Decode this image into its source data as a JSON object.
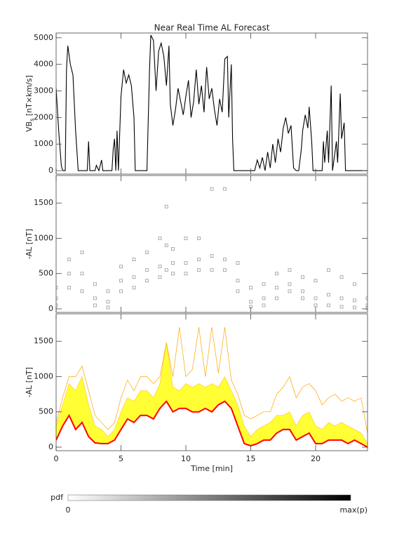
{
  "chart_data": [
    {
      "type": "line",
      "title": "Near Real Time AL Forecast",
      "ylabel": {
        "main": "VB",
        "sub": "s",
        "unit": " [nT×km/s]"
      },
      "color": "#000000",
      "xlim": [
        0,
        24
      ],
      "ylim": [
        -130,
        5180
      ],
      "yticks": [
        0,
        1000,
        2000,
        3000,
        4000,
        5000
      ],
      "x": [
        0,
        0.2,
        0.4,
        0.5,
        0.7,
        0.8,
        0.9,
        1.1,
        1.3,
        1.5,
        1.7,
        2.0,
        2.4,
        2.5,
        2.6,
        3.0,
        3.1,
        3.3,
        3.5,
        3.6,
        4.3,
        4.4,
        4.5,
        4.6,
        4.7,
        4.8,
        5.0,
        5.2,
        5.4,
        5.6,
        5.8,
        6.0,
        6.1,
        7.0,
        7.2,
        7.3,
        7.5,
        7.7,
        7.9,
        8.1,
        8.3,
        8.5,
        8.7,
        8.8,
        9.0,
        9.2,
        9.4,
        9.6,
        9.8,
        10.0,
        10.2,
        10.4,
        10.6,
        10.8,
        11.0,
        11.2,
        11.4,
        11.6,
        11.8,
        12.0,
        12.2,
        12.4,
        12.6,
        12.8,
        13.0,
        13.2,
        13.3,
        13.5,
        13.6,
        13.7,
        15.0,
        15.3,
        15.5,
        15.7,
        15.9,
        16.1,
        16.3,
        16.5,
        16.7,
        16.9,
        17.1,
        17.3,
        17.5,
        17.7,
        17.9,
        18.1,
        18.3,
        18.5,
        18.7,
        18.9,
        19.0,
        19.2,
        19.4,
        19.5,
        19.7,
        19.8,
        20.0,
        20.5,
        20.6,
        20.7,
        20.9,
        21.0,
        21.2,
        21.3,
        21.6,
        21.7,
        21.9,
        22.0,
        22.2,
        22.3,
        24.0
      ],
      "values": [
        3100,
        1500,
        200,
        0,
        0,
        3800,
        4700,
        4000,
        3600,
        1500,
        0,
        0,
        0,
        1100,
        0,
        0,
        200,
        0,
        400,
        0,
        0,
        800,
        1200,
        0,
        1500,
        0,
        2800,
        3800,
        3300,
        3600,
        3200,
        2000,
        0,
        0,
        3800,
        5100,
        4900,
        3000,
        4500,
        4800,
        4300,
        3200,
        4700,
        2500,
        1700,
        2300,
        3100,
        2600,
        2100,
        2800,
        3400,
        2000,
        2600,
        3800,
        2500,
        3200,
        2200,
        3900,
        2700,
        3100,
        2300,
        1700,
        2700,
        2200,
        4200,
        4300,
        2000,
        4000,
        1200,
        0,
        0,
        0,
        400,
        100,
        500,
        0,
        700,
        100,
        1000,
        300,
        1200,
        700,
        1600,
        2000,
        1400,
        1700,
        100,
        0,
        0,
        800,
        1500,
        2100,
        1600,
        2400,
        1100,
        0,
        0,
        0,
        1100,
        300,
        1500,
        300,
        3200,
        0,
        1100,
        300,
        2900,
        1200,
        1800,
        0,
        0
      ]
    },
    {
      "type": "scatter",
      "ylabel": "-AL [nT]",
      "color": "#555555",
      "xlim": [
        0,
        24
      ],
      "ylim": [
        -50,
        1890
      ],
      "yticks": [
        0,
        500,
        1000,
        1500
      ],
      "x": [
        0,
        0,
        0,
        1,
        1,
        1,
        2,
        2,
        2,
        3,
        3,
        3,
        4,
        4,
        4,
        5,
        5,
        5,
        6,
        6,
        6,
        7,
        7,
        7,
        8,
        8,
        8,
        8.5,
        8.5,
        8.5,
        9,
        9,
        9,
        10,
        10,
        10,
        11,
        11,
        11,
        12,
        12,
        12,
        13,
        13,
        13,
        14,
        14,
        14,
        15,
        15,
        15,
        16,
        16,
        16,
        17,
        17,
        17,
        18,
        18,
        18,
        19,
        19,
        19,
        20,
        20,
        20,
        21,
        21,
        21,
        22,
        22,
        22,
        23,
        23,
        23,
        24,
        24,
        24
      ],
      "values": [
        50,
        150,
        300,
        300,
        500,
        700,
        250,
        500,
        800,
        50,
        150,
        350,
        20,
        100,
        250,
        250,
        400,
        600,
        300,
        450,
        700,
        400,
        550,
        800,
        450,
        600,
        1000,
        550,
        900,
        1450,
        500,
        650,
        850,
        500,
        650,
        1000,
        550,
        700,
        1000,
        550,
        750,
        1700,
        550,
        700,
        1700,
        250,
        400,
        650,
        30,
        100,
        300,
        50,
        150,
        350,
        150,
        300,
        500,
        250,
        350,
        550,
        150,
        250,
        450,
        50,
        150,
        400,
        50,
        200,
        550,
        30,
        150,
        450,
        20,
        120,
        350,
        10,
        50,
        150
      ]
    },
    {
      "type": "area",
      "ylabel": "-AL [nT]",
      "xlabel": "Time [min]",
      "xlim": [
        0,
        24
      ],
      "ylim": [
        -50,
        1890
      ],
      "yticks": [
        0,
        500,
        1000,
        1500
      ],
      "xticks": [
        0,
        5,
        10,
        15,
        20
      ],
      "x": [
        0,
        0.5,
        1,
        1.5,
        2,
        2.5,
        3,
        3.5,
        4,
        4.5,
        5,
        5.5,
        6,
        6.5,
        7,
        7.5,
        8,
        8.5,
        9,
        9.5,
        10,
        10.5,
        11,
        11.5,
        12,
        12.5,
        13,
        13.5,
        14,
        14.5,
        15,
        15.5,
        16,
        16.5,
        17,
        17.5,
        18,
        18.5,
        19,
        19.5,
        20,
        20.5,
        21,
        21.5,
        22,
        22.5,
        23,
        23.5,
        24
      ],
      "series": [
        {
          "color": "#ff0000",
          "values": [
            100,
            300,
            450,
            250,
            350,
            150,
            60,
            50,
            50,
            100,
            250,
            400,
            350,
            450,
            450,
            400,
            550,
            650,
            500,
            550,
            550,
            500,
            500,
            550,
            500,
            600,
            650,
            550,
            300,
            50,
            20,
            50,
            100,
            100,
            200,
            250,
            250,
            100,
            150,
            200,
            50,
            50,
            100,
            100,
            100,
            50,
            100,
            50,
            0
          ]
        },
        {
          "color": "#ffff33",
          "values": [
            300,
            600,
            900,
            800,
            1000,
            600,
            300,
            250,
            150,
            250,
            500,
            700,
            650,
            800,
            800,
            700,
            900,
            1480,
            850,
            800,
            900,
            850,
            900,
            850,
            900,
            850,
            1000,
            800,
            600,
            300,
            150,
            250,
            300,
            350,
            450,
            450,
            500,
            300,
            450,
            500,
            300,
            250,
            350,
            300,
            350,
            300,
            250,
            200,
            50
          ]
        },
        {
          "color": "#ffa500",
          "values": [
            350,
            700,
            1000,
            1000,
            1150,
            800,
            450,
            350,
            250,
            350,
            700,
            950,
            800,
            1000,
            1000,
            900,
            1000,
            1480,
            1000,
            1700,
            1000,
            1100,
            1700,
            1000,
            1700,
            1050,
            1700,
            950,
            750,
            450,
            400,
            450,
            500,
            500,
            750,
            850,
            1000,
            700,
            850,
            900,
            800,
            600,
            700,
            750,
            650,
            700,
            650,
            700,
            200
          ]
        }
      ],
      "colorbar": {
        "label": "pdf",
        "min_label": "0",
        "max_label": "max(p)",
        "colors": [
          "#ffffff",
          "#000000"
        ]
      }
    }
  ]
}
